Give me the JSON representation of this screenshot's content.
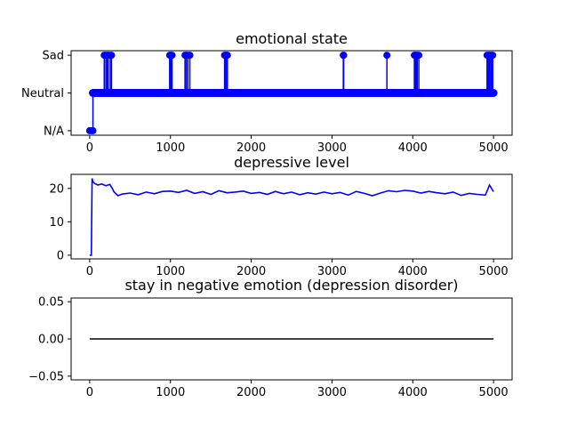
{
  "chart_data": [
    {
      "type": "line",
      "title": "emotional state",
      "xlabel": "",
      "ylabel": "",
      "xlim": [
        -230,
        5230
      ],
      "ylim": [
        -0.12,
        2.12
      ],
      "xticks": [
        0,
        1000,
        2000,
        3000,
        4000,
        5000
      ],
      "yticks": [
        0,
        1,
        2
      ],
      "ytick_labels": [
        "N/A",
        "Neutral",
        "Sad"
      ],
      "markers": true,
      "grid": false,
      "series": [
        {
          "color": "#0000ff",
          "baseline": 1,
          "start": {
            "x": [
              0,
              40
            ],
            "value": 0
          },
          "x_max": 5000,
          "spikes": [
            [
              180,
              2
            ],
            [
              200,
              2
            ],
            [
              215,
              2
            ],
            [
              230,
              2
            ],
            [
              255,
              2
            ],
            [
              270,
              2
            ],
            [
              990,
              2
            ],
            [
              1000,
              2
            ],
            [
              1010,
              2
            ],
            [
              1020,
              2
            ],
            [
              1180,
              2
            ],
            [
              1195,
              2
            ],
            [
              1215,
              2
            ],
            [
              1240,
              2
            ],
            [
              1670,
              2
            ],
            [
              1680,
              2
            ],
            [
              1695,
              2
            ],
            [
              1705,
              2
            ],
            [
              3140,
              2
            ],
            [
              3145,
              2
            ],
            [
              3680,
              2
            ],
            [
              4020,
              2
            ],
            [
              4030,
              2
            ],
            [
              4040,
              2
            ],
            [
              4055,
              2
            ],
            [
              4075,
              2
            ],
            [
              4920,
              2
            ],
            [
              4935,
              2
            ],
            [
              4950,
              2
            ],
            [
              4965,
              2
            ],
            [
              4980,
              2
            ],
            [
              4990,
              2
            ]
          ]
        }
      ]
    },
    {
      "type": "line",
      "title": "depressive level",
      "xlabel": "",
      "ylabel": "",
      "xlim": [
        -230,
        5230
      ],
      "ylim": [
        -1.1,
        24.2
      ],
      "xticks": [
        0,
        1000,
        2000,
        3000,
        4000,
        5000
      ],
      "yticks": [
        0,
        10,
        20
      ],
      "grid": false,
      "series": [
        {
          "color": "#0000ff",
          "x": [
            0,
            20,
            30,
            40,
            60,
            100,
            150,
            200,
            250,
            280,
            300,
            350,
            400,
            500,
            600,
            700,
            800,
            900,
            1000,
            1100,
            1200,
            1300,
            1400,
            1500,
            1600,
            1700,
            1800,
            1900,
            2000,
            2100,
            2200,
            2300,
            2400,
            2500,
            2600,
            2700,
            2800,
            2900,
            3000,
            3100,
            3200,
            3300,
            3400,
            3500,
            3600,
            3700,
            3800,
            3900,
            4000,
            4100,
            4200,
            4300,
            4400,
            4500,
            4600,
            4700,
            4800,
            4900,
            4950,
            5000
          ],
          "values": [
            0,
            0,
            23,
            22,
            21.5,
            21,
            21.3,
            20.8,
            21.2,
            20,
            19,
            17.8,
            18.3,
            18.6,
            18.1,
            18.9,
            18.4,
            19.1,
            19.2,
            18.8,
            19.4,
            18.5,
            19,
            18.2,
            19.3,
            18.7,
            18.9,
            19.2,
            18.5,
            18.8,
            18.2,
            19.1,
            18.4,
            18.9,
            18.1,
            18.7,
            18.3,
            18.9,
            18.4,
            18.8,
            18,
            19.1,
            18.5,
            17.8,
            18.6,
            19.3,
            19,
            19.4,
            19.2,
            18.6,
            19.1,
            18.7,
            18.4,
            18.9,
            17.9,
            18.5,
            18.2,
            18,
            21,
            19
          ]
        }
      ]
    },
    {
      "type": "line",
      "title": "stay in negative emotion (depression disorder)",
      "xlabel": "",
      "ylabel": "",
      "xlim": [
        -230,
        5230
      ],
      "ylim": [
        -0.055,
        0.055
      ],
      "xticks": [
        0,
        1000,
        2000,
        3000,
        4000,
        5000
      ],
      "yticks": [
        -0.05,
        0.0,
        0.05
      ],
      "ytick_labels": [
        "−0.05",
        "0.00",
        "0.05"
      ],
      "grid": false,
      "series": [
        {
          "color": "#000000",
          "x": [
            0,
            5000
          ],
          "values": [
            0,
            0
          ]
        }
      ]
    }
  ]
}
